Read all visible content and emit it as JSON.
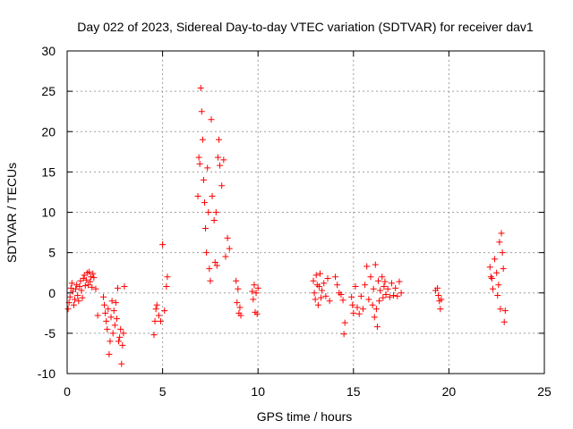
{
  "chart_data": {
    "type": "scatter",
    "title": "Day 022 of 2023, Sidereal Day-to-day VTEC variation (SDTVAR) for receiver dav1",
    "xlabel": "GPS time / hours",
    "ylabel": "SDTVAR / TECUs",
    "xlim": [
      0,
      25
    ],
    "ylim": [
      -10,
      30
    ],
    "xticks": [
      0,
      5,
      10,
      15,
      20,
      25
    ],
    "yticks": [
      -10,
      -5,
      0,
      5,
      10,
      15,
      20,
      25,
      30
    ],
    "grid": true,
    "marker": "+",
    "color": "#ff0000",
    "series": [
      {
        "name": "dav1",
        "points": [
          [
            0.05,
            -2.0
          ],
          [
            0.1,
            -1.2
          ],
          [
            0.15,
            -0.5
          ],
          [
            0.2,
            0.6
          ],
          [
            0.25,
            1.2
          ],
          [
            0.3,
            0.2
          ],
          [
            0.35,
            -1.5
          ],
          [
            0.4,
            -0.8
          ],
          [
            0.45,
            0.5
          ],
          [
            0.5,
            1.0
          ],
          [
            0.55,
            -0.3
          ],
          [
            0.6,
            -1.0
          ],
          [
            0.65,
            0.8
          ],
          [
            0.7,
            1.5
          ],
          [
            0.75,
            0.3
          ],
          [
            0.8,
            -0.6
          ],
          [
            0.85,
            1.8
          ],
          [
            0.9,
            2.2
          ],
          [
            0.95,
            0.9
          ],
          [
            1.0,
            1.6
          ],
          [
            1.05,
            2.5
          ],
          [
            1.1,
            1.0
          ],
          [
            1.15,
            2.6
          ],
          [
            1.2,
            1.4
          ],
          [
            1.25,
            2.0
          ],
          [
            1.3,
            0.7
          ],
          [
            1.35,
            2.4
          ],
          [
            1.4,
            1.9
          ],
          [
            1.5,
            0.5
          ],
          [
            1.6,
            -2.8
          ],
          [
            1.9,
            -0.5
          ],
          [
            1.95,
            -1.5
          ],
          [
            2.0,
            -2.5
          ],
          [
            2.05,
            -3.5
          ],
          [
            2.1,
            -4.5
          ],
          [
            2.15,
            -2.0
          ],
          [
            2.2,
            -7.6
          ],
          [
            2.25,
            -6.0
          ],
          [
            2.3,
            -3.0
          ],
          [
            2.35,
            -1.0
          ],
          [
            2.4,
            -5.0
          ],
          [
            2.45,
            -2.2
          ],
          [
            2.5,
            -4.0
          ],
          [
            2.55,
            -1.2
          ],
          [
            2.6,
            -3.2
          ],
          [
            2.65,
            0.6
          ],
          [
            2.7,
            -6.0
          ],
          [
            2.75,
            -5.5
          ],
          [
            2.8,
            -4.5
          ],
          [
            2.85,
            -8.8
          ],
          [
            2.9,
            -6.5
          ],
          [
            2.95,
            -5.0
          ],
          [
            3.0,
            0.8
          ],
          [
            4.55,
            -5.2
          ],
          [
            4.6,
            -3.5
          ],
          [
            4.65,
            -2.0
          ],
          [
            4.7,
            -1.5
          ],
          [
            4.8,
            -2.8
          ],
          [
            4.9,
            -3.5
          ],
          [
            5.0,
            6.0
          ],
          [
            5.1,
            -2.2
          ],
          [
            5.2,
            0.8
          ],
          [
            5.25,
            2.0
          ],
          [
            6.85,
            12.0
          ],
          [
            6.9,
            16.8
          ],
          [
            6.95,
            16.0
          ],
          [
            7.0,
            25.4
          ],
          [
            7.05,
            22.5
          ],
          [
            7.1,
            19.0
          ],
          [
            7.15,
            14.0
          ],
          [
            7.2,
            11.2
          ],
          [
            7.25,
            8.0
          ],
          [
            7.3,
            5.0
          ],
          [
            7.35,
            15.5
          ],
          [
            7.4,
            10.0
          ],
          [
            7.45,
            3.0
          ],
          [
            7.5,
            1.5
          ],
          [
            7.55,
            21.5
          ],
          [
            7.6,
            12.0
          ],
          [
            7.7,
            9.0
          ],
          [
            7.75,
            3.8
          ],
          [
            7.8,
            10.0
          ],
          [
            7.85,
            3.4
          ],
          [
            7.9,
            16.8
          ],
          [
            7.95,
            19.0
          ],
          [
            8.0,
            15.8
          ],
          [
            8.1,
            13.3
          ],
          [
            8.2,
            16.5
          ],
          [
            8.3,
            4.5
          ],
          [
            8.4,
            6.8
          ],
          [
            8.5,
            5.5
          ],
          [
            8.85,
            1.5
          ],
          [
            8.9,
            -1.2
          ],
          [
            8.95,
            0.5
          ],
          [
            9.0,
            -2.5
          ],
          [
            9.05,
            -1.8
          ],
          [
            9.1,
            -2.8
          ],
          [
            9.7,
            0.2
          ],
          [
            9.75,
            -0.8
          ],
          [
            9.8,
            1.0
          ],
          [
            9.85,
            -2.4
          ],
          [
            9.9,
            0.0
          ],
          [
            9.95,
            -2.6
          ],
          [
            10.0,
            0.6
          ],
          [
            12.9,
            1.5
          ],
          [
            12.95,
            0.0
          ],
          [
            13.0,
            -0.8
          ],
          [
            13.05,
            2.2
          ],
          [
            13.1,
            1.0
          ],
          [
            13.15,
            -1.5
          ],
          [
            13.2,
            0.8
          ],
          [
            13.25,
            2.4
          ],
          [
            13.3,
            -0.6
          ],
          [
            13.35,
            0.3
          ],
          [
            13.45,
            1.2
          ],
          [
            13.55,
            -0.4
          ],
          [
            13.65,
            1.8
          ],
          [
            13.75,
            -1.0
          ],
          [
            14.05,
            2.0
          ],
          [
            14.15,
            1.0
          ],
          [
            14.25,
            0.0
          ],
          [
            14.35,
            -0.2
          ],
          [
            14.45,
            -0.9
          ],
          [
            14.5,
            -5.1
          ],
          [
            14.55,
            -3.7
          ],
          [
            14.9,
            -0.5
          ],
          [
            14.95,
            -1.5
          ],
          [
            15.0,
            -2.5
          ],
          [
            15.1,
            0.8
          ],
          [
            15.2,
            -1.8
          ],
          [
            15.3,
            -2.6
          ],
          [
            15.4,
            -0.4
          ],
          [
            15.5,
            -2.0
          ],
          [
            15.6,
            1.0
          ],
          [
            15.7,
            3.3
          ],
          [
            15.8,
            -0.8
          ],
          [
            15.9,
            2.0
          ],
          [
            16.0,
            -1.5
          ],
          [
            16.05,
            0.5
          ],
          [
            16.1,
            -3.0
          ],
          [
            16.15,
            3.5
          ],
          [
            16.2,
            -2.0
          ],
          [
            16.25,
            -4.2
          ],
          [
            16.3,
            1.5
          ],
          [
            16.35,
            -1.0
          ],
          [
            16.4,
            0.3
          ],
          [
            16.5,
            2.0
          ],
          [
            16.55,
            -0.6
          ],
          [
            16.6,
            0.8
          ],
          [
            16.65,
            1.4
          ],
          [
            16.7,
            -0.2
          ],
          [
            16.8,
            0.5
          ],
          [
            16.9,
            -0.5
          ],
          [
            17.0,
            1.2
          ],
          [
            17.1,
            -0.3
          ],
          [
            17.2,
            0.6
          ],
          [
            17.3,
            -0.4
          ],
          [
            17.4,
            1.4
          ],
          [
            17.5,
            0.0
          ],
          [
            19.3,
            0.3
          ],
          [
            19.4,
            0.6
          ],
          [
            19.45,
            -0.3
          ],
          [
            19.5,
            -1.0
          ],
          [
            19.55,
            -2.0
          ],
          [
            19.6,
            -0.8
          ],
          [
            22.15,
            3.2
          ],
          [
            22.2,
            2.0
          ],
          [
            22.25,
            1.8
          ],
          [
            22.3,
            0.5
          ],
          [
            22.4,
            4.2
          ],
          [
            22.5,
            2.5
          ],
          [
            22.55,
            -0.3
          ],
          [
            22.6,
            1.0
          ],
          [
            22.65,
            6.3
          ],
          [
            22.7,
            -2.0
          ],
          [
            22.75,
            7.4
          ],
          [
            22.8,
            5.0
          ],
          [
            22.85,
            3.0
          ],
          [
            22.9,
            -3.6
          ],
          [
            22.95,
            -2.2
          ]
        ]
      }
    ]
  }
}
